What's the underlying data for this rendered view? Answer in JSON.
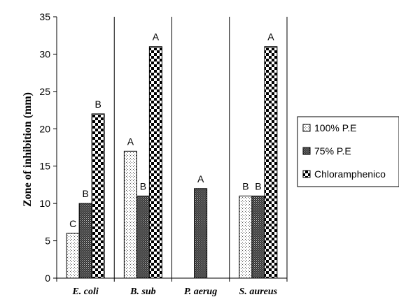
{
  "chart_data": {
    "type": "bar",
    "categories": [
      "E. coli",
      "B. sub",
      "P. aerug",
      "S. aureus"
    ],
    "series": [
      {
        "name": "100% P.E",
        "pattern": "dots",
        "values": [
          6,
          17,
          null,
          11
        ],
        "labels": [
          "C",
          "A",
          "",
          "B"
        ]
      },
      {
        "name": "75% P.E",
        "pattern": "dense",
        "values": [
          10,
          11,
          12,
          11
        ],
        "labels": [
          "B",
          "B",
          "A",
          "B"
        ]
      },
      {
        "name": "Chloramphenicol",
        "pattern": "checker",
        "values": [
          22,
          31,
          null,
          31
        ],
        "labels": [
          "B",
          "A",
          "",
          "A"
        ]
      }
    ],
    "legend_display": [
      "100% P.E",
      "75% P.E",
      "Chloramphenico"
    ],
    "ylabel": "Zone of inhibition (mm)",
    "xlabel": "",
    "ylim": [
      0,
      35
    ],
    "yticks": [
      0,
      5,
      10,
      15,
      20,
      25,
      30,
      35
    ],
    "grid": false,
    "category_dividers": true,
    "legend_position": "right"
  }
}
